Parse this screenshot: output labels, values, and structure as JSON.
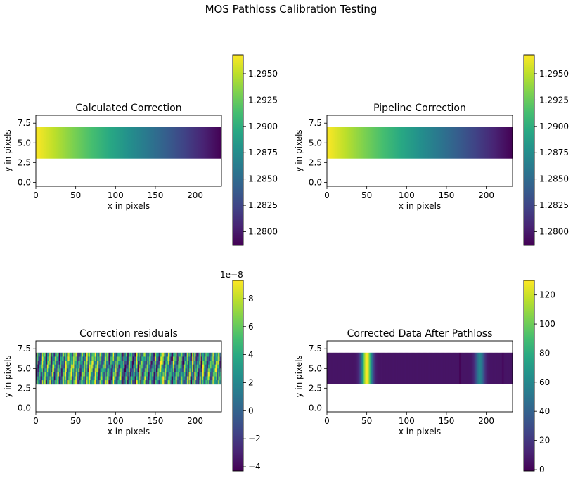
{
  "figure": {
    "suptitle": "MOS Pathloss Calibration Testing"
  },
  "chart_data": [
    {
      "type": "heatmap",
      "title": "Calculated Correction",
      "xlabel": "x in pixels",
      "ylabel": "y in pixels",
      "xlim": [
        0,
        233
      ],
      "ylim": [
        -0.5,
        8.5
      ],
      "xticks": [
        0,
        50,
        100,
        150,
        200
      ],
      "yticks": [
        0.0,
        2.5,
        5.0,
        7.5
      ],
      "data_rows": [
        3,
        7
      ],
      "pattern": "linear-gradient",
      "gradient": [
        1.2968,
        1.2787
      ],
      "colorbar": {
        "range": [
          1.2787,
          1.2968
        ],
        "ticks": [
          1.28,
          1.2825,
          1.285,
          1.2875,
          1.29,
          1.2925,
          1.295
        ],
        "tick_labels": [
          "1.2800",
          "1.2825",
          "1.2850",
          "1.2875",
          "1.2900",
          "1.2925",
          "1.2950"
        ],
        "offset_label": ""
      },
      "colormap": "viridis"
    },
    {
      "type": "heatmap",
      "title": "Pipeline Correction",
      "xlabel": "x in pixels",
      "ylabel": "y in pixels",
      "xlim": [
        0,
        233
      ],
      "ylim": [
        -0.5,
        8.5
      ],
      "xticks": [
        0,
        50,
        100,
        150,
        200
      ],
      "yticks": [
        0.0,
        2.5,
        5.0,
        7.5
      ],
      "data_rows": [
        3,
        7
      ],
      "pattern": "linear-gradient",
      "gradient": [
        1.2968,
        1.2787
      ],
      "colorbar": {
        "range": [
          1.2787,
          1.2968
        ],
        "ticks": [
          1.28,
          1.2825,
          1.285,
          1.2875,
          1.29,
          1.2925,
          1.295
        ],
        "tick_labels": [
          "1.2800",
          "1.2825",
          "1.2850",
          "1.2875",
          "1.2900",
          "1.2925",
          "1.2950"
        ],
        "offset_label": ""
      },
      "colormap": "viridis"
    },
    {
      "type": "heatmap",
      "title": "Correction residuals",
      "xlabel": "x in pixels",
      "ylabel": "y in pixels",
      "xlim": [
        0,
        233
      ],
      "ylim": [
        -0.5,
        8.5
      ],
      "xticks": [
        0,
        50,
        100,
        150,
        200
      ],
      "yticks": [
        0.0,
        2.5,
        5.0,
        7.5
      ],
      "data_rows": [
        3,
        7
      ],
      "pattern": "noise-stripes",
      "colorbar": {
        "range": [
          -4.3,
          9.3
        ],
        "ticks": [
          -4,
          -2,
          0,
          2,
          4,
          6,
          8
        ],
        "tick_labels": [
          "−4",
          "−2",
          "0",
          "2",
          "4",
          "6",
          "8"
        ],
        "offset_label": "1e−8"
      },
      "colormap": "viridis"
    },
    {
      "type": "heatmap",
      "title": "Corrected Data After Pathloss",
      "xlabel": "x in pixels",
      "ylabel": "y in pixels",
      "xlim": [
        0,
        233
      ],
      "ylim": [
        -0.5,
        8.5
      ],
      "xticks": [
        0,
        50,
        100,
        150,
        200
      ],
      "yticks": [
        0.0,
        2.5,
        5.0,
        7.5
      ],
      "data_rows": [
        3,
        7
      ],
      "pattern": "spectrum",
      "background_level": 6,
      "features": [
        {
          "x": 50,
          "sigma": 4.5,
          "peak": 124
        },
        {
          "x": 192,
          "sigma": 4.0,
          "peak": 52
        },
        {
          "x": 167,
          "sigma": 0.6,
          "peak": -8
        },
        {
          "x": 221,
          "sigma": 0.6,
          "peak": -6
        }
      ],
      "colorbar": {
        "range": [
          -1,
          130
        ],
        "ticks": [
          0,
          20,
          40,
          60,
          80,
          100,
          120
        ],
        "tick_labels": [
          "0",
          "20",
          "40",
          "60",
          "80",
          "100",
          "120"
        ],
        "offset_label": ""
      },
      "colormap": "viridis"
    }
  ]
}
